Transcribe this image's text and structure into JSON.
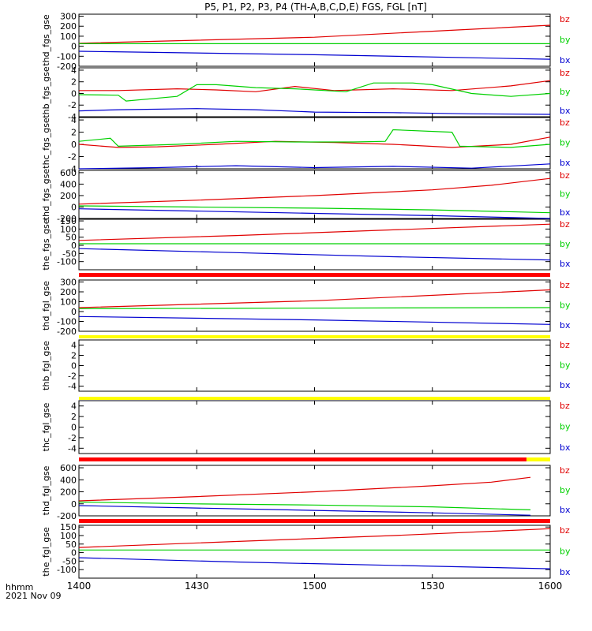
{
  "title": "P5, P1, P2, P3, P4 (TH-A,B,C,D,E) FGS, FGL [nT]",
  "footer": {
    "axis_label": "hhmm",
    "date": "2021 Nov 09"
  },
  "colors": {
    "bz": "#e00000",
    "by": "#00d000",
    "bx": "#0000d0",
    "red_bar": "#ff0000",
    "yellow_bar": "#ffff00"
  },
  "chart_data": [
    {
      "type": "line",
      "name": "thd_fgs_gse",
      "ylabel": "thd_fgs_gse",
      "ylim": [
        -200,
        320
      ],
      "yticks": [
        300,
        200,
        100,
        0,
        -100,
        -200
      ],
      "series": [
        {
          "name": "bz",
          "x": [
            0,
            60,
            120
          ],
          "values": [
            30,
            90,
            210
          ]
        },
        {
          "name": "by",
          "x": [
            0,
            60,
            120
          ],
          "values": [
            25,
            25,
            25
          ]
        },
        {
          "name": "bx",
          "x": [
            0,
            60,
            120
          ],
          "values": [
            -50,
            -85,
            -130
          ]
        }
      ]
    },
    {
      "type": "line",
      "name": "thb_fgs_gse",
      "ylabel": "thb_fgs_gse",
      "ylim": [
        -4,
        4.4
      ],
      "yticks": [
        4,
        2,
        0,
        -2,
        -4
      ],
      "series": [
        {
          "name": "bz",
          "x": [
            0,
            10,
            25,
            35,
            45,
            55,
            65,
            80,
            95,
            110,
            120
          ],
          "values": [
            0.5,
            0.5,
            0.8,
            0.6,
            0.3,
            1.2,
            0.5,
            0.8,
            0.5,
            1.3,
            2.2
          ]
        },
        {
          "name": "by",
          "x": [
            0,
            10,
            12,
            25,
            30,
            35,
            45,
            55,
            68,
            75,
            85,
            90,
            100,
            110,
            120
          ],
          "values": [
            -0.2,
            -0.3,
            -1.3,
            -0.5,
            1.5,
            1.5,
            1,
            0.8,
            0.3,
            1.8,
            1.8,
            1.5,
            0,
            -0.5,
            0
          ]
        },
        {
          "name": "bx",
          "x": [
            0,
            10,
            30,
            45,
            60,
            80,
            100,
            120
          ],
          "values": [
            -3,
            -2.8,
            -2.6,
            -2.8,
            -3.2,
            -3.3,
            -3.5,
            -3.6
          ]
        }
      ]
    },
    {
      "type": "line",
      "name": "thc_fgs_gse",
      "ylabel": "thc_fgs_gse",
      "ylim": [
        -4,
        4.4
      ],
      "yticks": [
        4,
        2,
        0,
        -2,
        -4
      ],
      "series": [
        {
          "name": "bz",
          "x": [
            0,
            10,
            20,
            35,
            50,
            65,
            80,
            95,
            110,
            120
          ],
          "values": [
            0,
            -0.5,
            -0.4,
            0,
            0.5,
            0.3,
            0,
            -0.5,
            0,
            1.2
          ]
        },
        {
          "name": "by",
          "x": [
            0,
            8,
            10,
            25,
            40,
            55,
            70,
            78,
            80,
            95,
            97,
            110,
            120
          ],
          "values": [
            0.5,
            1,
            -0.3,
            0,
            0.5,
            0.4,
            0.4,
            0.5,
            2.4,
            2,
            -0.3,
            -0.5,
            0
          ]
        },
        {
          "name": "bx",
          "x": [
            0,
            20,
            40,
            60,
            80,
            100,
            120
          ],
          "values": [
            -4,
            -3.8,
            -3.5,
            -3.8,
            -3.6,
            -3.9,
            -3.2
          ]
        }
      ]
    },
    {
      "type": "line",
      "name": "thd_fgs_gse",
      "ylabel": "thd_fgs_gse",
      "ylim": [
        -200,
        640
      ],
      "yticks": [
        600,
        400,
        200,
        0,
        -200
      ],
      "series": [
        {
          "name": "bz",
          "x": [
            0,
            30,
            60,
            90,
            105,
            120
          ],
          "values": [
            50,
            120,
            200,
            300,
            380,
            500
          ]
        },
        {
          "name": "by",
          "x": [
            0,
            30,
            60,
            90,
            120
          ],
          "values": [
            20,
            0,
            -20,
            -50,
            -100
          ]
        },
        {
          "name": "bx",
          "x": [
            0,
            30,
            60,
            90,
            120
          ],
          "values": [
            -30,
            -70,
            -110,
            -150,
            -200
          ]
        }
      ]
    },
    {
      "type": "line",
      "name": "the_fgs_gse",
      "ylabel": "the_fgs_gse",
      "ylim": [
        -150,
        160
      ],
      "yticks": [
        150,
        100,
        50,
        0,
        -50,
        -100
      ],
      "series": [
        {
          "name": "bz",
          "x": [
            0,
            40,
            80,
            120
          ],
          "values": [
            30,
            60,
            95,
            130
          ]
        },
        {
          "name": "by",
          "x": [
            0,
            120
          ],
          "values": [
            10,
            10
          ]
        },
        {
          "name": "bx",
          "x": [
            0,
            40,
            80,
            120
          ],
          "values": [
            -20,
            -45,
            -70,
            -90
          ]
        }
      ]
    },
    {
      "type": "line",
      "name": "thd_fgl_gse",
      "ylabel": "thd_fgl_gse",
      "ylim": [
        -200,
        320
      ],
      "yticks": [
        300,
        200,
        100,
        0,
        -100,
        -200
      ],
      "series": [
        {
          "name": "bz",
          "x": [
            0,
            60,
            120
          ],
          "values": [
            40,
            110,
            220
          ]
        },
        {
          "name": "by",
          "x": [
            0,
            120
          ],
          "values": [
            30,
            40
          ]
        },
        {
          "name": "bx",
          "x": [
            0,
            60,
            120
          ],
          "values": [
            -50,
            -85,
            -130
          ]
        }
      ]
    },
    {
      "type": "line",
      "name": "thb_fgl_gse",
      "ylabel": "thb_fgl_gse",
      "ylim": [
        -5,
        5
      ],
      "yticks": [
        4,
        2,
        0,
        -2,
        -4
      ],
      "series": []
    },
    {
      "type": "line",
      "name": "thc_fgl_gse",
      "ylabel": "thc_fgl_gse",
      "ylim": [
        -5,
        5
      ],
      "yticks": [
        4,
        2,
        0,
        -2,
        -4
      ],
      "series": []
    },
    {
      "type": "line",
      "name": "thd_fgl_gse",
      "ylabel": "thd_fgl_gse",
      "ylim": [
        -200,
        640
      ],
      "yticks": [
        600,
        400,
        200,
        0,
        -200
      ],
      "series": [
        {
          "name": "bz",
          "x": [
            0,
            30,
            60,
            90,
            105,
            115
          ],
          "values": [
            50,
            120,
            200,
            300,
            360,
            440
          ]
        },
        {
          "name": "by",
          "x": [
            0,
            30,
            60,
            90,
            115
          ],
          "values": [
            30,
            0,
            -20,
            -50,
            -100
          ]
        },
        {
          "name": "bx",
          "x": [
            0,
            30,
            60,
            90,
            115
          ],
          "values": [
            -30,
            -70,
            -110,
            -150,
            -190
          ]
        }
      ]
    },
    {
      "type": "line",
      "name": "the_fgl_gse",
      "ylabel": "the_fgl_gse",
      "ylim": [
        -150,
        160
      ],
      "yticks": [
        150,
        100,
        50,
        0,
        -50,
        -100
      ],
      "series": [
        {
          "name": "bz",
          "x": [
            0,
            40,
            80,
            120
          ],
          "values": [
            30,
            65,
            100,
            140
          ]
        },
        {
          "name": "by",
          "x": [
            0,
            120
          ],
          "values": [
            15,
            15
          ]
        },
        {
          "name": "bx",
          "x": [
            0,
            40,
            80,
            120
          ],
          "values": [
            -30,
            -55,
            -75,
            -95
          ]
        }
      ]
    }
  ],
  "legend_labels": [
    "bz",
    "by",
    "bx"
  ],
  "x_axis": {
    "range": [
      0,
      120
    ],
    "ticks": [
      0,
      30,
      60,
      90,
      120
    ],
    "tick_labels": [
      "1400",
      "1430",
      "1500",
      "1530",
      "1600"
    ]
  }
}
